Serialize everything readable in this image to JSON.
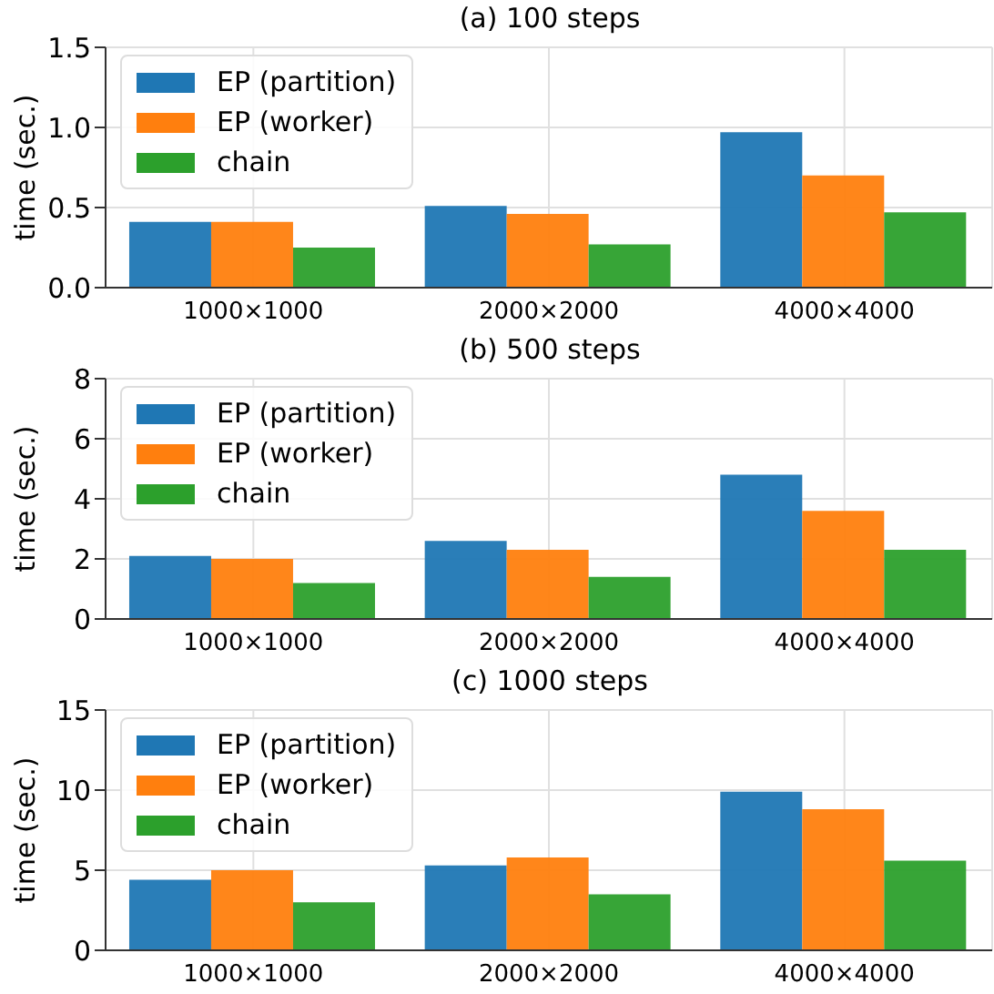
{
  "chart_data": [
    {
      "type": "bar",
      "title": "(a) 100 steps",
      "ylabel": "time (sec.)",
      "categories": [
        "1000×1000",
        "2000×2000",
        "4000×4000"
      ],
      "series": [
        {
          "name": "EP (partition)",
          "color": "#1f77b4",
          "values": [
            0.41,
            0.51,
            0.97
          ]
        },
        {
          "name": "EP (worker)",
          "color": "#ff7f0e",
          "values": [
            0.41,
            0.46,
            0.7
          ]
        },
        {
          "name": "chain",
          "color": "#2ca02c",
          "values": [
            0.25,
            0.27,
            0.47
          ]
        }
      ],
      "ylim": [
        0,
        1.5
      ],
      "yticks": [
        {
          "value": 0,
          "label": "0.0"
        },
        {
          "value": 0.5,
          "label": "0.5"
        },
        {
          "value": 1,
          "label": "1.0"
        },
        {
          "value": 1.5,
          "label": "1.5"
        }
      ],
      "grid": true,
      "legend": "top left"
    },
    {
      "type": "bar",
      "title": "(b) 500 steps",
      "ylabel": "time (sec.)",
      "categories": [
        "1000×1000",
        "2000×2000",
        "4000×4000"
      ],
      "series": [
        {
          "name": "EP (partition)",
          "color": "#1f77b4",
          "values": [
            2.1,
            2.6,
            4.8
          ]
        },
        {
          "name": "EP (worker)",
          "color": "#ff7f0e",
          "values": [
            2.0,
            2.3,
            3.6
          ]
        },
        {
          "name": "chain",
          "color": "#2ca02c",
          "values": [
            1.2,
            1.4,
            2.3
          ]
        }
      ],
      "ylim": [
        0,
        8
      ],
      "yticks": [
        0,
        2,
        4,
        6,
        8
      ],
      "grid": true,
      "legend": "top left"
    },
    {
      "type": "bar",
      "title": "(c) 1000 steps",
      "ylabel": "time (sec.)",
      "categories": [
        "1000×1000",
        "2000×2000",
        "4000×4000"
      ],
      "series": [
        {
          "name": "EP (partition)",
          "color": "#1f77b4",
          "values": [
            4.4,
            5.3,
            9.9
          ]
        },
        {
          "name": "EP (worker)",
          "color": "#ff7f0e",
          "values": [
            5.0,
            5.8,
            8.8
          ]
        },
        {
          "name": "chain",
          "color": "#2ca02c",
          "values": [
            3.0,
            3.5,
            5.6
          ]
        }
      ],
      "ylim": [
        0,
        15
      ],
      "yticks": [
        0,
        5,
        10,
        15
      ],
      "grid": true,
      "legend": "top left"
    }
  ]
}
